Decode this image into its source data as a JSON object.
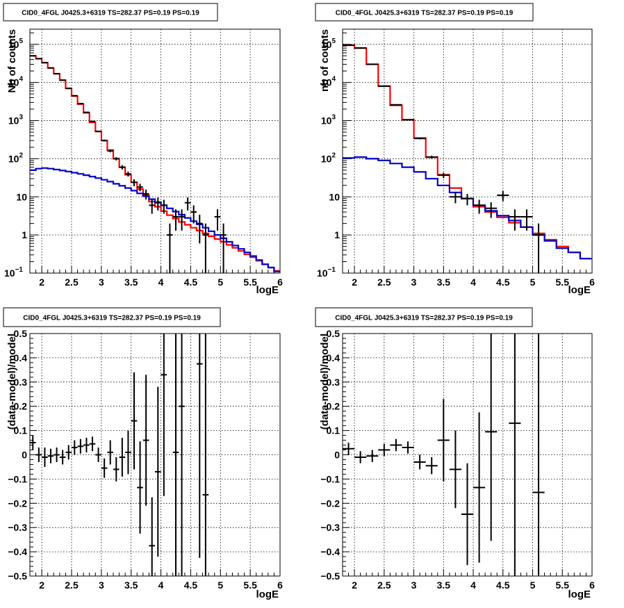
{
  "chart_data": [
    {
      "type": "line",
      "title": "CID0_4FGL J0425.3+6319 TS=282.37 PS=0.19 PS=0.19",
      "xlabel": "logE",
      "ylabel": "Nb of counts",
      "ylog": true,
      "xlim": [
        1.8,
        6.0
      ],
      "ylim": [
        0.1,
        250000
      ],
      "grid": true,
      "x_ticks": [
        "2",
        "2.5",
        "3",
        "3.5",
        "4",
        "4.5",
        "5",
        "5.5",
        "6"
      ],
      "y_ticks": [
        {
          "base": "10",
          "exp": "−1",
          "value": 0.1
        },
        {
          "base": "1",
          "exp": "",
          "value": 1
        },
        {
          "base": "10",
          "exp": "",
          "value": 10
        },
        {
          "base": "10",
          "exp": "2",
          "value": 100
        },
        {
          "base": "10",
          "exp": "3",
          "value": 1000
        },
        {
          "base": "10",
          "exp": "4",
          "value": 10000
        },
        {
          "base": "10",
          "exp": "5",
          "value": 100000
        }
      ],
      "bin_edges": [
        1.8,
        1.9,
        2.0,
        2.1,
        2.2,
        2.3,
        2.4,
        2.5,
        2.6,
        2.7,
        2.8,
        2.9,
        3.0,
        3.1,
        3.2,
        3.3,
        3.4,
        3.5,
        3.6,
        3.7,
        3.8,
        3.9,
        4.0,
        4.1,
        4.2,
        4.3,
        4.4,
        4.5,
        4.6,
        4.7,
        4.8,
        4.9,
        5.0,
        5.1,
        5.2,
        5.3,
        5.4,
        5.5,
        5.6,
        5.7,
        5.8,
        5.9,
        6.0
      ],
      "series": [
        {
          "color": "#ff0000",
          "values": [
            50000,
            42000,
            33000,
            24000,
            17000,
            11500,
            7000,
            4400,
            2700,
            1600,
            900,
            520,
            300,
            170,
            100,
            60,
            38,
            24,
            16,
            11,
            7.5,
            5.5,
            4.2,
            3.3,
            2.7,
            2.2,
            1.85,
            1.55,
            1.3,
            1.1,
            0.92,
            0.78,
            0.66,
            0.55,
            0.46,
            0.38,
            0.31,
            0.26,
            0.21,
            0.17,
            0.14,
            0.115
          ]
        },
        {
          "color": "#0000cc",
          "values": [
            50,
            55,
            57,
            55,
            52,
            49,
            46,
            43,
            40,
            37,
            34,
            31,
            28,
            25,
            22,
            19.5,
            17,
            14.5,
            12.3,
            10.4,
            8.7,
            7.3,
            6,
            5,
            4.1,
            3.4,
            2.8,
            2.3,
            1.9,
            1.55,
            1.25,
            1.0,
            0.82,
            0.66,
            0.53,
            0.43,
            0.35,
            0.28,
            0.22,
            0.17,
            0.14,
            0.11
          ]
        }
      ],
      "points": [
        {
          "x": 1.85,
          "y": 50000,
          "yerr": [
            200,
            200
          ]
        },
        {
          "x": 1.95,
          "y": 42000,
          "yerr": [
            200,
            200
          ]
        },
        {
          "x": 2.05,
          "y": 33000,
          "yerr": [
            180,
            180
          ]
        },
        {
          "x": 2.15,
          "y": 24000,
          "yerr": [
            150,
            150
          ]
        },
        {
          "x": 2.25,
          "y": 17000,
          "yerr": [
            130,
            130
          ]
        },
        {
          "x": 2.35,
          "y": 11500,
          "yerr": [
            110,
            110
          ]
        },
        {
          "x": 2.45,
          "y": 7000,
          "yerr": [
            84,
            84
          ]
        },
        {
          "x": 2.55,
          "y": 4500,
          "yerr": [
            67,
            67
          ]
        },
        {
          "x": 2.65,
          "y": 2800,
          "yerr": [
            53,
            53
          ]
        },
        {
          "x": 2.75,
          "y": 1650,
          "yerr": [
            40,
            40
          ]
        },
        {
          "x": 2.85,
          "y": 950,
          "yerr": [
            30,
            30
          ]
        },
        {
          "x": 2.95,
          "y": 520,
          "yerr": [
            23,
            23
          ]
        },
        {
          "x": 3.05,
          "y": 300,
          "yerr": [
            17,
            17
          ]
        },
        {
          "x": 3.15,
          "y": 160,
          "yerr": [
            13,
            13
          ]
        },
        {
          "x": 3.25,
          "y": 100,
          "yerr": [
            10,
            10
          ]
        },
        {
          "x": 3.35,
          "y": 60,
          "yerr": [
            8,
            8
          ]
        },
        {
          "x": 3.45,
          "y": 40,
          "yerr": [
            6,
            6
          ]
        },
        {
          "x": 3.55,
          "y": 24,
          "yerr": [
            5,
            5
          ]
        },
        {
          "x": 3.65,
          "y": 18,
          "yerr": [
            4,
            4
          ]
        },
        {
          "x": 3.75,
          "y": 12,
          "yerr": [
            3.5,
            3.5
          ]
        },
        {
          "x": 3.85,
          "y": 6,
          "yerr": [
            2.4,
            2.4
          ]
        },
        {
          "x": 3.95,
          "y": 7,
          "yerr": [
            2.6,
            2.6
          ]
        },
        {
          "x": 4.05,
          "y": 6,
          "yerr": [
            2.4,
            2.4
          ]
        },
        {
          "x": 4.15,
          "y": 1,
          "yerr": [
            1,
            1
          ]
        },
        {
          "x": 4.25,
          "y": 3,
          "yerr": [
            1.7,
            1.7
          ]
        },
        {
          "x": 4.35,
          "y": 3,
          "yerr": [
            1.7,
            1.7
          ]
        },
        {
          "x": 4.45,
          "y": 7,
          "yerr": [
            2.6,
            2.6
          ]
        },
        {
          "x": 4.55,
          "y": 4,
          "yerr": [
            2,
            2
          ]
        },
        {
          "x": 4.65,
          "y": 2,
          "yerr": [
            1.4,
            1.4
          ]
        },
        {
          "x": 4.75,
          "y": 1,
          "yerr": [
            1,
            1
          ]
        },
        {
          "x": 4.95,
          "y": 3,
          "yerr": [
            1.7,
            1.7
          ]
        },
        {
          "x": 5.05,
          "y": 1,
          "yerr": [
            1,
            1
          ]
        }
      ]
    },
    {
      "type": "line",
      "title": "CID0_4FGL J0425.3+6319 TS=282.37 PS=0.19 PS=0.19",
      "xlabel": "logE",
      "ylabel": "nb of counts",
      "ylog": true,
      "xlim": [
        1.8,
        6.0
      ],
      "ylim": [
        0.1,
        250000
      ],
      "grid": true,
      "x_ticks": [
        "2",
        "2.5",
        "3",
        "3.5",
        "4",
        "4.5",
        "5",
        "5.5",
        "6"
      ],
      "y_ticks": [
        {
          "base": "10",
          "exp": "−1",
          "value": 0.1
        },
        {
          "base": "1",
          "exp": "",
          "value": 1
        },
        {
          "base": "10",
          "exp": "",
          "value": 10
        },
        {
          "base": "10",
          "exp": "2",
          "value": 100
        },
        {
          "base": "10",
          "exp": "3",
          "value": 1000
        },
        {
          "base": "10",
          "exp": "4",
          "value": 10000
        },
        {
          "base": "10",
          "exp": "5",
          "value": 100000
        }
      ],
      "bin_edges": [
        1.8,
        2.0,
        2.2,
        2.4,
        2.6,
        2.8,
        3.0,
        3.2,
        3.4,
        3.6,
        3.8,
        4.0,
        4.2,
        4.4,
        4.6,
        4.8,
        5.0,
        5.2,
        5.4,
        5.6,
        5.8,
        6.0
      ],
      "series": [
        {
          "color": "#ff0000",
          "values": [
            95000,
            80000,
            30000,
            8000,
            2500,
            1050,
            350,
            110,
            38,
            17,
            9,
            5.5,
            4,
            2.9,
            2.1,
            1.6,
            1.1,
            0.75,
            0.5,
            0.35,
            0.24
          ]
        },
        {
          "color": "#0000cc",
          "values": [
            105,
            110,
            100,
            90,
            75,
            60,
            45,
            30,
            20,
            13,
            9,
            6,
            4.3,
            3.2,
            2.4,
            1.6,
            1.0,
            0.7,
            0.45,
            0.35,
            0.24
          ]
        }
      ],
      "points": [
        {
          "x": 1.9,
          "y": 95000,
          "yerr": [
            310,
            310
          ]
        },
        {
          "x": 2.1,
          "y": 80000,
          "yerr": [
            280,
            280
          ]
        },
        {
          "x": 2.3,
          "y": 30000,
          "yerr": [
            170,
            170
          ]
        },
        {
          "x": 2.5,
          "y": 8000,
          "yerr": [
            90,
            90
          ]
        },
        {
          "x": 2.7,
          "y": 2600,
          "yerr": [
            51,
            51
          ]
        },
        {
          "x": 2.9,
          "y": 1050,
          "yerr": [
            32,
            32
          ]
        },
        {
          "x": 3.1,
          "y": 340,
          "yerr": [
            18,
            18
          ]
        },
        {
          "x": 3.3,
          "y": 110,
          "yerr": [
            10,
            10
          ]
        },
        {
          "x": 3.5,
          "y": 37,
          "yerr": [
            6,
            6
          ]
        },
        {
          "x": 3.7,
          "y": 10,
          "yerr": [
            3.2,
            3.2
          ]
        },
        {
          "x": 3.9,
          "y": 9,
          "yerr": [
            3,
            3
          ]
        },
        {
          "x": 4.1,
          "y": 6,
          "yerr": [
            2.4,
            2.4
          ]
        },
        {
          "x": 4.3,
          "y": 5,
          "yerr": [
            2.2,
            2.2
          ]
        },
        {
          "x": 4.5,
          "y": 11,
          "yerr": [
            3.3,
            3.3
          ]
        },
        {
          "x": 4.7,
          "y": 3,
          "yerr": [
            1.7,
            1.7
          ]
        },
        {
          "x": 4.9,
          "y": 3,
          "yerr": [
            1.7,
            1.7
          ]
        },
        {
          "x": 5.1,
          "y": 1,
          "yerr": [
            1,
            1
          ]
        }
      ]
    },
    {
      "type": "scatter",
      "title": "CID0_4FGL J0425.3+6319 TS=282.37 PS=0.19 PS=0.19",
      "xlabel": "logE",
      "ylabel": "(data-model)/model",
      "ylog": false,
      "xlim": [
        1.8,
        6.0
      ],
      "ylim": [
        -0.5,
        0.5
      ],
      "grid": true,
      "x_ticks": [
        "2",
        "2.5",
        "3",
        "3.5",
        "4",
        "4.5",
        "5",
        "5.5",
        "6"
      ],
      "y_ticks": [
        "−0.5",
        "−0.4",
        "−0.3",
        "−0.2",
        "−0.1",
        "0",
        "0.1",
        "0.2",
        "0.3",
        "0.4",
        "0.5"
      ],
      "xerr": 0.05,
      "points": [
        {
          "x": 1.85,
          "y": 0.05,
          "yerr": [
            0.03,
            0.03
          ]
        },
        {
          "x": 1.95,
          "y": 0.0,
          "yerr": [
            0.03,
            0.03
          ]
        },
        {
          "x": 2.05,
          "y": -0.01,
          "yerr": [
            0.04,
            0.04
          ]
        },
        {
          "x": 2.15,
          "y": -0.005,
          "yerr": [
            0.03,
            0.03
          ]
        },
        {
          "x": 2.25,
          "y": 0.0,
          "yerr": [
            0.03,
            0.03
          ]
        },
        {
          "x": 2.35,
          "y": -0.01,
          "yerr": [
            0.03,
            0.03
          ]
        },
        {
          "x": 2.45,
          "y": 0.01,
          "yerr": [
            0.03,
            0.03
          ]
        },
        {
          "x": 2.55,
          "y": 0.03,
          "yerr": [
            0.03,
            0.03
          ]
        },
        {
          "x": 2.65,
          "y": 0.035,
          "yerr": [
            0.03,
            0.03
          ]
        },
        {
          "x": 2.75,
          "y": 0.04,
          "yerr": [
            0.03,
            0.03
          ]
        },
        {
          "x": 2.85,
          "y": 0.045,
          "yerr": [
            0.03,
            0.03
          ]
        },
        {
          "x": 2.95,
          "y": 0.0,
          "yerr": [
            0.03,
            0.03
          ]
        },
        {
          "x": 3.05,
          "y": -0.055,
          "yerr": [
            0.04,
            0.04
          ]
        },
        {
          "x": 3.15,
          "y": 0.01,
          "yerr": [
            0.05,
            0.05
          ]
        },
        {
          "x": 3.25,
          "y": -0.06,
          "yerr": [
            0.05,
            0.05
          ]
        },
        {
          "x": 3.35,
          "y": -0.01,
          "yerr": [
            0.08,
            0.08
          ]
        },
        {
          "x": 3.45,
          "y": 0.01,
          "yerr": [
            0.09,
            0.09
          ]
        },
        {
          "x": 3.55,
          "y": 0.14,
          "yerr": [
            0.2,
            0.2
          ]
        },
        {
          "x": 3.65,
          "y": -0.135,
          "yerr": [
            0.19,
            0.19
          ]
        },
        {
          "x": 3.75,
          "y": 0.06,
          "yerr": [
            0.27,
            0.27
          ]
        },
        {
          "x": 3.85,
          "y": -0.375,
          "yerr": [
            0.2,
            0.2
          ]
        },
        {
          "x": 3.95,
          "y": -0.07,
          "yerr": [
            0.35,
            0.35
          ]
        },
        {
          "x": 4.05,
          "y": 0.33,
          "yerr": [
            0.5,
            0.5
          ]
        },
        {
          "x": 4.25,
          "y": 0.01,
          "yerr": [
            0.55,
            0.55
          ]
        },
        {
          "x": 4.35,
          "y": 0.2,
          "yerr": [
            0.8,
            0.8
          ]
        },
        {
          "x": 4.65,
          "y": 0.375,
          "yerr": [
            0.8,
            0.8
          ]
        },
        {
          "x": 4.75,
          "y": -0.165,
          "yerr": [
            0.8,
            0.8
          ]
        }
      ]
    },
    {
      "type": "scatter",
      "title": "CID0_4FGL J0425.3+6319 TS=282.37 PS=0.19 PS=0.19",
      "xlabel": "logE",
      "ylabel": "(data-model)/model",
      "ylog": false,
      "xlim": [
        1.8,
        6.0
      ],
      "ylim": [
        -0.5,
        0.5
      ],
      "grid": true,
      "x_ticks": [
        "2",
        "2.5",
        "3",
        "3.5",
        "4",
        "4.5",
        "5",
        "5.5",
        "6"
      ],
      "y_ticks": [
        "−0.5",
        "−0.4",
        "−0.3",
        "−0.2",
        "−0.1",
        "0",
        "0.1",
        "0.2",
        "0.3",
        "0.4",
        "0.5"
      ],
      "xerr": 0.1,
      "points": [
        {
          "x": 1.9,
          "y": 0.025,
          "yerr": [
            0.025,
            0.025
          ]
        },
        {
          "x": 2.1,
          "y": -0.01,
          "yerr": [
            0.025,
            0.025
          ]
        },
        {
          "x": 2.3,
          "y": -0.005,
          "yerr": [
            0.025,
            0.025
          ]
        },
        {
          "x": 2.5,
          "y": 0.02,
          "yerr": [
            0.025,
            0.025
          ]
        },
        {
          "x": 2.7,
          "y": 0.04,
          "yerr": [
            0.025,
            0.025
          ]
        },
        {
          "x": 2.9,
          "y": 0.03,
          "yerr": [
            0.025,
            0.025
          ]
        },
        {
          "x": 3.1,
          "y": -0.03,
          "yerr": [
            0.03,
            0.03
          ]
        },
        {
          "x": 3.3,
          "y": -0.045,
          "yerr": [
            0.035,
            0.035
          ]
        },
        {
          "x": 3.5,
          "y": 0.06,
          "yerr": [
            0.17,
            0.17
          ]
        },
        {
          "x": 3.7,
          "y": -0.06,
          "yerr": [
            0.16,
            0.16
          ]
        },
        {
          "x": 3.9,
          "y": -0.245,
          "yerr": [
            0.21,
            0.21
          ]
        },
        {
          "x": 4.1,
          "y": -0.135,
          "yerr": [
            0.31,
            0.31
          ]
        },
        {
          "x": 4.3,
          "y": 0.095,
          "yerr": [
            0.45,
            0.45
          ]
        },
        {
          "x": 4.7,
          "y": 0.13,
          "yerr": [
            0.9,
            0.9
          ]
        },
        {
          "x": 5.1,
          "y": -0.155,
          "yerr": [
            0.9,
            0.9
          ]
        }
      ]
    }
  ]
}
